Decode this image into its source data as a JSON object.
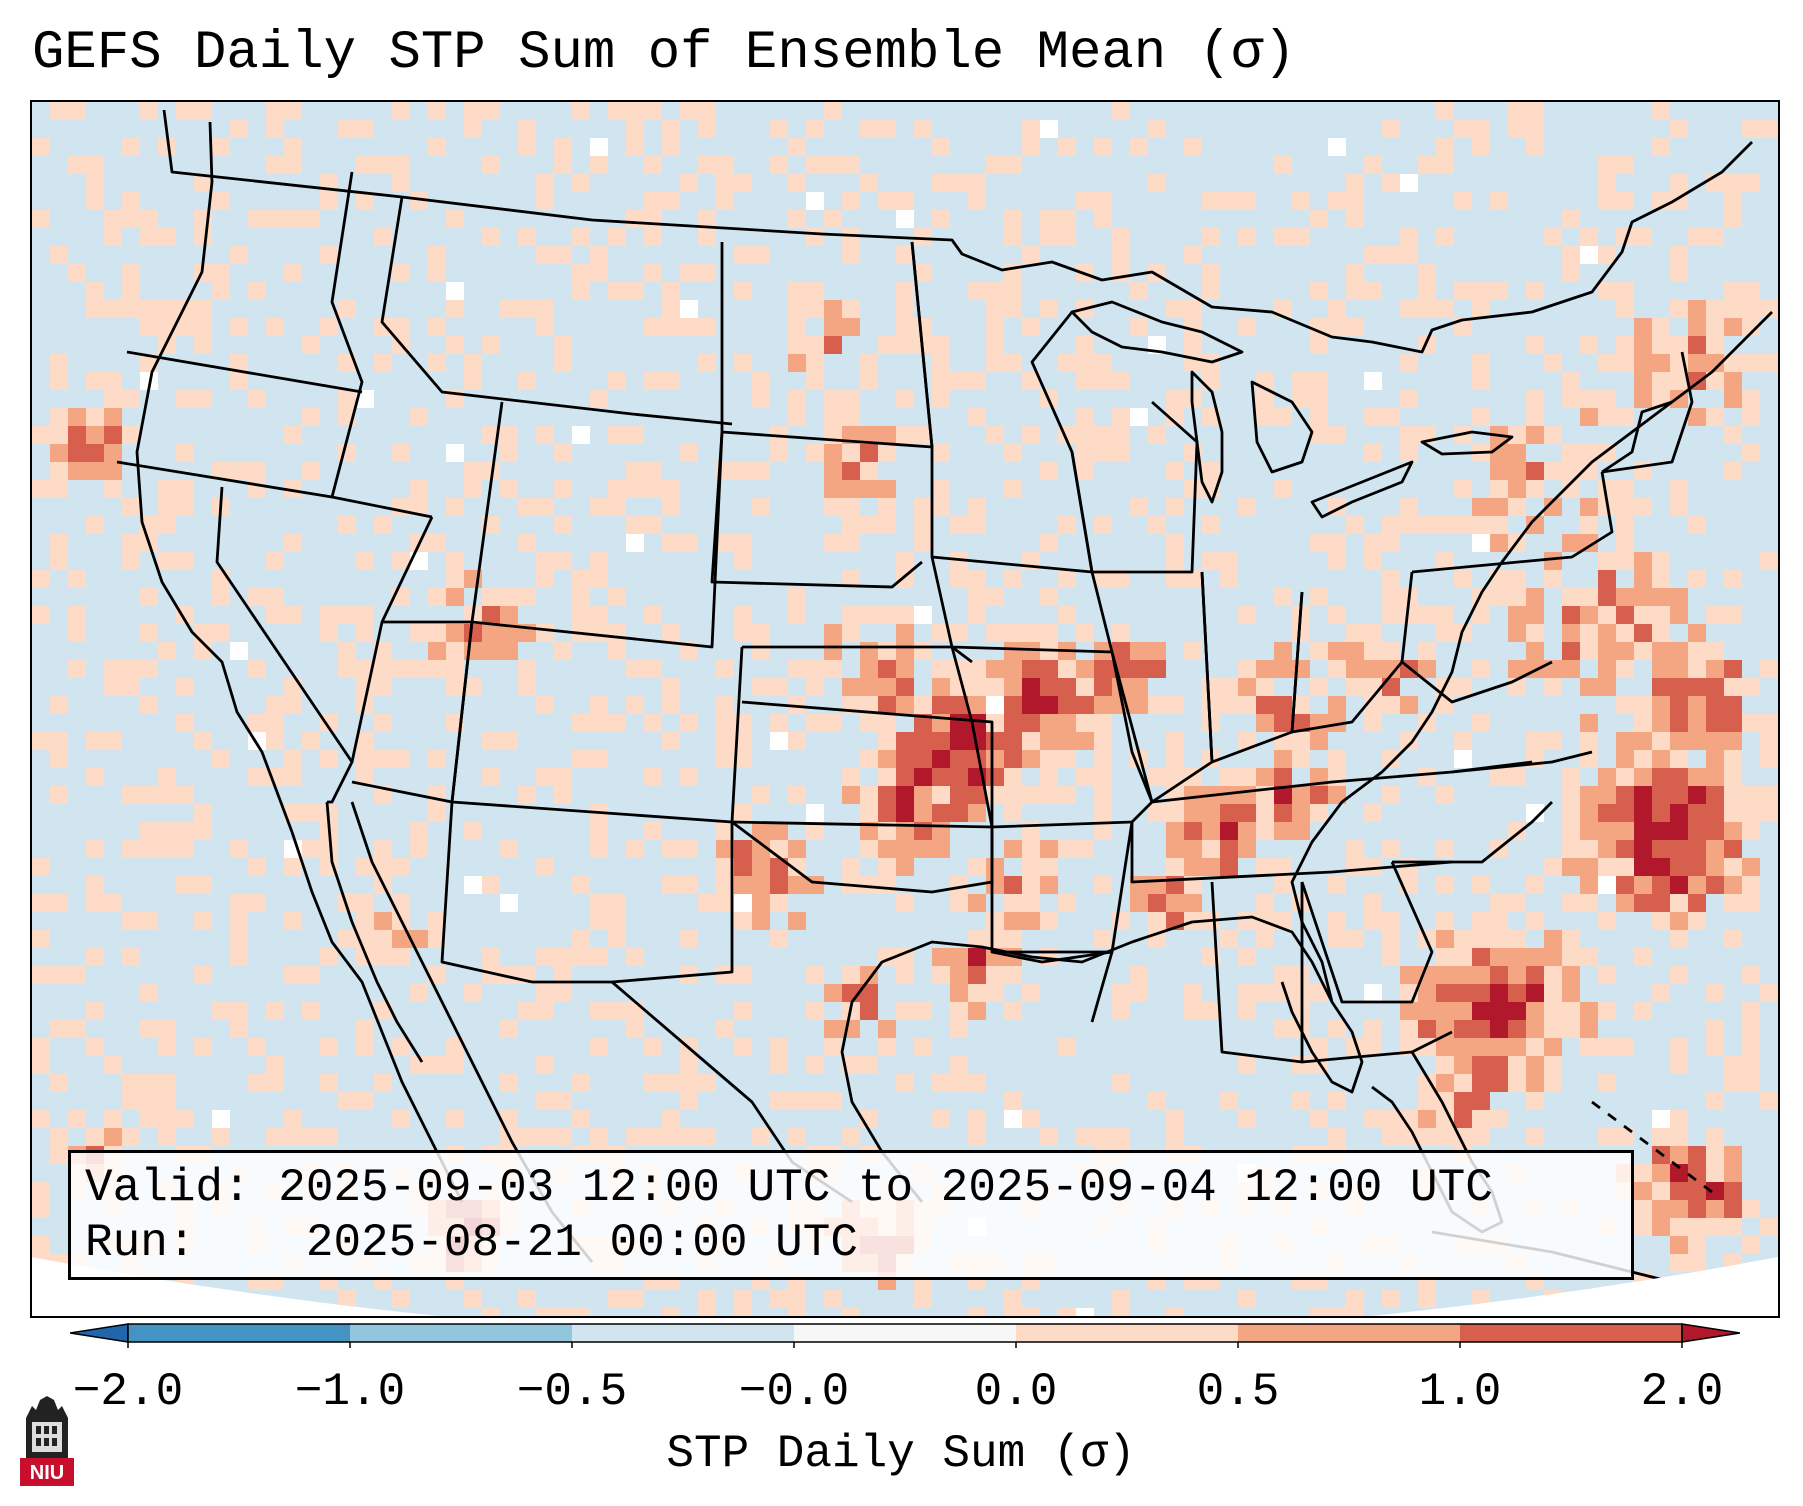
{
  "title": "GEFS Daily STP Sum of Ensemble Mean (σ)",
  "info": {
    "valid": "Valid: 2025-09-03 12:00 UTC to 2025-09-04 12:00 UTC",
    "run": "Run:    2025-08-21 00:00 UTC"
  },
  "colorbar": {
    "label": "STP Daily Sum (σ)",
    "ticks": [
      "−2.0",
      "−1.0",
      "−0.5",
      "−0.0",
      "0.0",
      "0.5",
      "1.0",
      "2.0"
    ],
    "colors": [
      "#2166ac",
      "#4393c3",
      "#92c5de",
      "#d1e5f0",
      "#f7f7f7",
      "#fddbc7",
      "#f4a582",
      "#d6604d",
      "#b2182b"
    ],
    "extend": "both"
  },
  "map": {
    "background_value": "#d1e5f0",
    "extent": "CONUS"
  },
  "logo": {
    "text": "NIU",
    "color": "#c8102e"
  }
}
